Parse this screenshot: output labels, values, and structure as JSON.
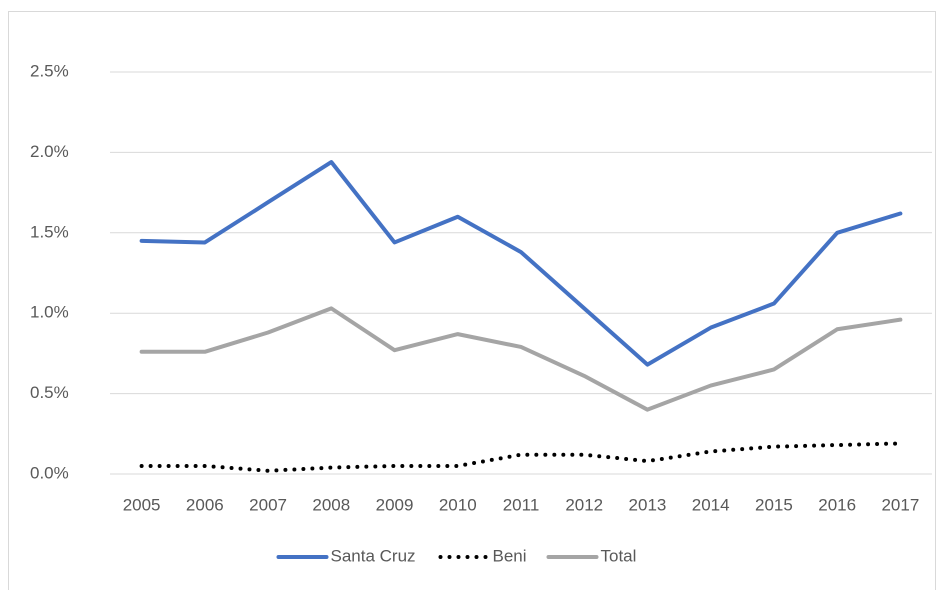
{
  "chart_data": {
    "type": "line",
    "categories": [
      "2005",
      "2006",
      "2007",
      "2008",
      "2009",
      "2010",
      "2011",
      "2012",
      "2013",
      "2014",
      "2015",
      "2016",
      "2017"
    ],
    "series": [
      {
        "name": "Santa Cruz",
        "color": "#4472c4",
        "style": "solid",
        "values": [
          1.45,
          1.44,
          1.69,
          1.94,
          1.44,
          1.6,
          1.38,
          1.03,
          0.68,
          0.91,
          1.06,
          1.5,
          1.62
        ]
      },
      {
        "name": "Beni",
        "color": "#000000",
        "style": "dotted",
        "values": [
          0.05,
          0.05,
          0.02,
          0.04,
          0.05,
          0.05,
          0.12,
          0.12,
          0.08,
          0.14,
          0.17,
          0.18,
          0.19
        ]
      },
      {
        "name": "Total",
        "color": "#a5a5a5",
        "style": "solid",
        "values": [
          0.76,
          0.76,
          0.88,
          1.03,
          0.77,
          0.87,
          0.79,
          0.61,
          0.4,
          0.55,
          0.65,
          0.9,
          0.96
        ]
      }
    ],
    "ylim": [
      0,
      2.5
    ],
    "yticks": [
      {
        "value": 0,
        "label": "0.0%"
      },
      {
        "value": 0.5,
        "label": "0.5%"
      },
      {
        "value": 1,
        "label": "1.0%"
      },
      {
        "value": 1.5,
        "label": "1.5%"
      },
      {
        "value": 2,
        "label": "2.0%"
      },
      {
        "value": 2.5,
        "label": "2.5%"
      }
    ],
    "grid": true,
    "legend": "bottom"
  }
}
